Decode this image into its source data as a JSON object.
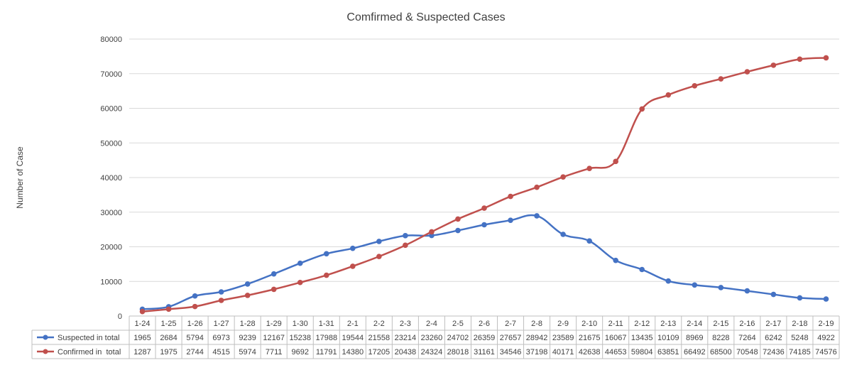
{
  "chart_data": {
    "type": "line",
    "title": "Comfirmed & Suspected Cases",
    "ylabel": "Number of Case",
    "xlabel": "",
    "ylim": [
      0,
      80000
    ],
    "yticks": [
      "0",
      "10000",
      "20000",
      "30000",
      "40000",
      "50000",
      "60000",
      "70000",
      "80000"
    ],
    "grid": true,
    "legend": "data-table-left",
    "categories": [
      "1-24",
      "1-25",
      "1-26",
      "1-27",
      "1-28",
      "1-29",
      "1-30",
      "1-31",
      "2-1",
      "2-2",
      "2-3",
      "2-4",
      "2-5",
      "2-6",
      "2-7",
      "2-8",
      "2-9",
      "2-10",
      "2-11",
      "2-12",
      "2-13",
      "2-14",
      "2-15",
      "2-16",
      "2-17",
      "2-18",
      "2-19"
    ],
    "series": [
      {
        "name": "Suspected in total",
        "color": "#4472C4",
        "values": [
          1965,
          2684,
          5794,
          6973,
          9239,
          12167,
          15238,
          17988,
          19544,
          21558,
          23214,
          23260,
          24702,
          26359,
          27657,
          28942,
          23589,
          21675,
          16067,
          13435,
          10109,
          8969,
          8228,
          7264,
          6242,
          5248,
          4922
        ]
      },
      {
        "name": "Confirmed in  total",
        "color": "#C0504D",
        "values": [
          1287,
          1975,
          2744,
          4515,
          5974,
          7711,
          9692,
          11791,
          14380,
          17205,
          20438,
          24324,
          28018,
          31161,
          34546,
          37198,
          40171,
          42638,
          44653,
          59804,
          63851,
          66492,
          68500,
          70548,
          72436,
          74185,
          74576
        ]
      }
    ]
  }
}
